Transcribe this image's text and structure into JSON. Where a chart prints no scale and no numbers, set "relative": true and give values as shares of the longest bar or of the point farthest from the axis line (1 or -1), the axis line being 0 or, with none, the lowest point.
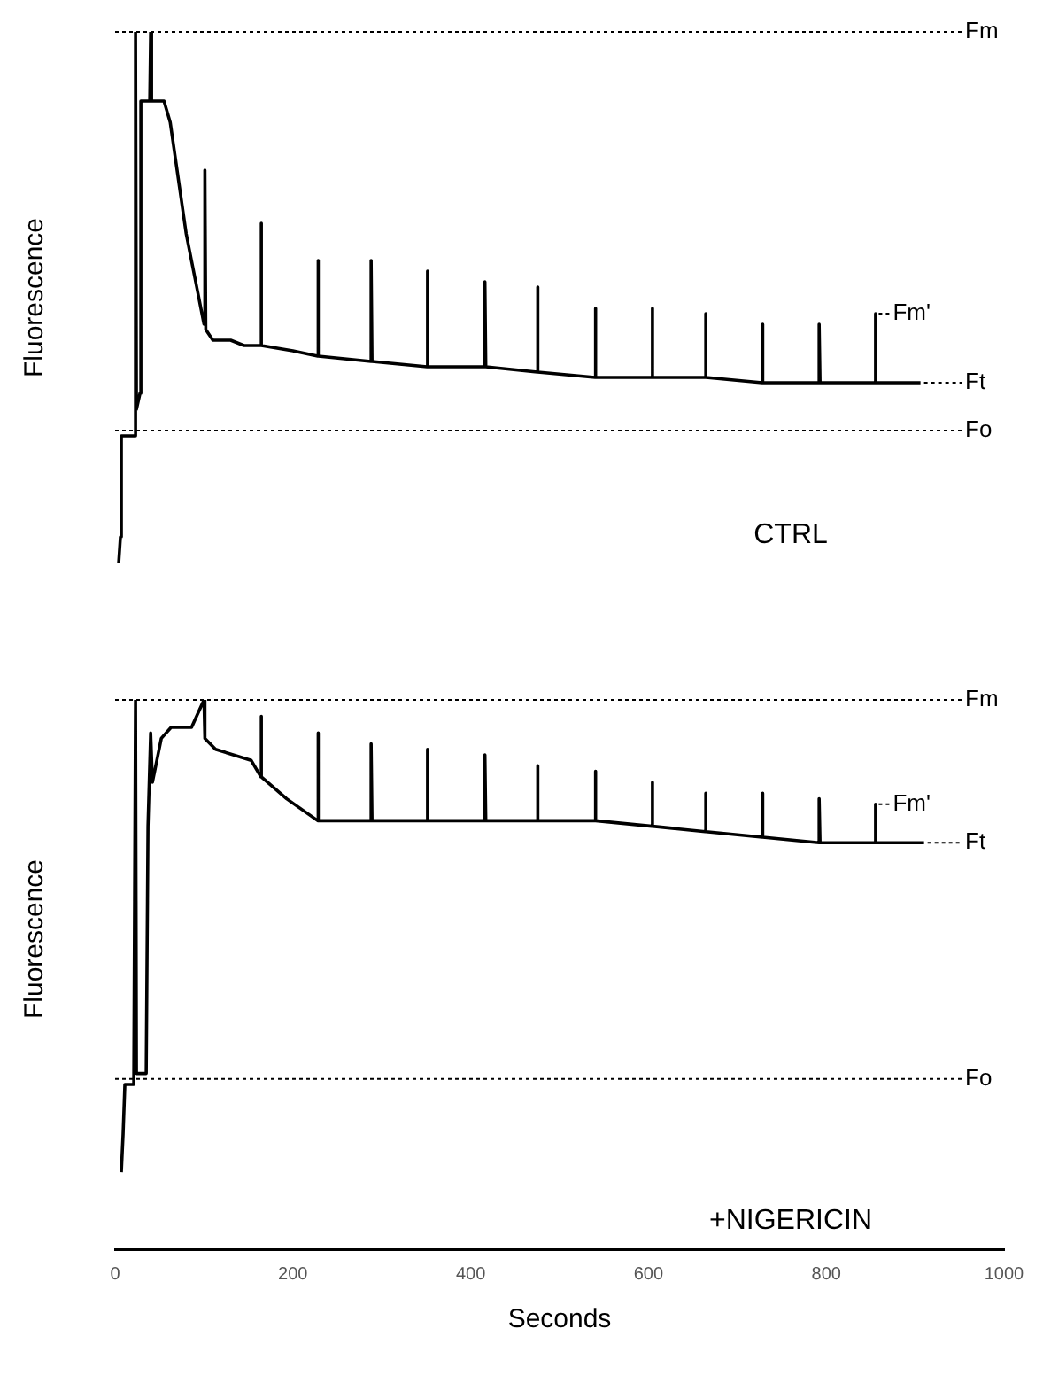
{
  "chart_data": [
    {
      "type": "line",
      "ylabel": "Fluorescence",
      "relative": true,
      "xlim": [
        0,
        1000
      ],
      "tick_labels": false,
      "series": [
        {
          "color": "#000000",
          "x": [
            4,
            6,
            7,
            22,
            23,
            24,
            28,
            29,
            39,
            40,
            41,
            55,
            62,
            80,
            93,
            100,
            101,
            102,
            110,
            130,
            145,
            164,
            164,
            165,
            200,
            228,
            228,
            229,
            288,
            288,
            289,
            351,
            351,
            352,
            416,
            416,
            417,
            475,
            475,
            476,
            540,
            540,
            541,
            604,
            604,
            605,
            664,
            664,
            665,
            728,
            728,
            729,
            792,
            792,
            793,
            855,
            855,
            856,
            906
          ],
          "values": [
            0,
            0.05,
            0.24,
            0.24,
            1,
            0.29,
            0.32,
            0.87,
            0.87,
            1,
            0.87,
            0.87,
            0.83,
            0.62,
            0.51,
            0.45,
            0.74,
            0.44,
            0.42,
            0.42,
            0.41,
            0.41,
            0.64,
            0.41,
            0.4,
            0.39,
            0.57,
            0.39,
            0.38,
            0.57,
            0.38,
            0.37,
            0.55,
            0.37,
            0.37,
            0.53,
            0.37,
            0.36,
            0.52,
            0.36,
            0.35,
            0.48,
            0.35,
            0.35,
            0.48,
            0.35,
            0.35,
            0.47,
            0.35,
            0.34,
            0.45,
            0.34,
            0.34,
            0.45,
            0.34,
            0.34,
            0.47,
            0.34,
            0.34
          ]
        }
      ],
      "ref_lines": [
        {
          "axis": "y",
          "value": 1,
          "label": "Fm",
          "line_style": "dotted",
          "color": "#000000"
        },
        {
          "axis": "y",
          "value": 0.25,
          "label": "Fo",
          "line_style": "dotted",
          "color": "#000000"
        }
      ],
      "annotations": [
        {
          "text": "Fm'",
          "x": 855,
          "y": 0.47
        },
        {
          "text": "Ft",
          "x": 906,
          "y": 0.34
        },
        "CTRL"
      ]
    },
    {
      "type": "line",
      "ylabel": "Fluorescence",
      "xlabel": "Seconds",
      "relative": true,
      "xlim": [
        0,
        1000
      ],
      "xticks": [
        0,
        200,
        400,
        600,
        800,
        1000
      ],
      "tick_labels": "x",
      "series": [
        {
          "color": "#000000",
          "x": [
            7,
            9,
            11,
            21,
            23,
            24,
            35,
            37,
            40,
            42,
            52,
            63,
            86,
            100,
            101,
            113,
            153,
            164,
            164,
            165,
            193,
            228,
            228,
            229,
            239,
            288,
            288,
            289,
            351,
            351,
            352,
            416,
            416,
            417,
            475,
            475,
            476,
            540,
            540,
            541,
            604,
            604,
            605,
            664,
            664,
            665,
            728,
            728,
            729,
            792,
            792,
            793,
            855,
            855,
            856,
            910
          ],
          "values": [
            0.14,
            0.21,
            0.3,
            0.3,
            1,
            0.32,
            0.32,
            0.77,
            0.94,
            0.85,
            0.93,
            0.95,
            0.95,
            1,
            0.93,
            0.91,
            0.89,
            0.86,
            0.97,
            0.86,
            0.82,
            0.78,
            0.94,
            0.78,
            0.78,
            0.78,
            0.92,
            0.78,
            0.78,
            0.91,
            0.78,
            0.78,
            0.9,
            0.78,
            0.78,
            0.88,
            0.78,
            0.78,
            0.87,
            0.78,
            0.77,
            0.85,
            0.77,
            0.76,
            0.83,
            0.76,
            0.75,
            0.83,
            0.75,
            0.74,
            0.82,
            0.74,
            0.74,
            0.81,
            0.74,
            0.74
          ]
        }
      ],
      "ref_lines": [
        {
          "axis": "y",
          "value": 1,
          "label": "Fm",
          "line_style": "dotted",
          "color": "#000000"
        },
        {
          "axis": "y",
          "value": 0.31,
          "label": "Fo",
          "line_style": "dotted",
          "color": "#000000"
        }
      ],
      "annotations": [
        {
          "text": "Fm'",
          "x": 855,
          "y": 0.81
        },
        {
          "text": "Ft",
          "x": 910,
          "y": 0.74
        },
        "+NIGERICIN"
      ]
    }
  ]
}
